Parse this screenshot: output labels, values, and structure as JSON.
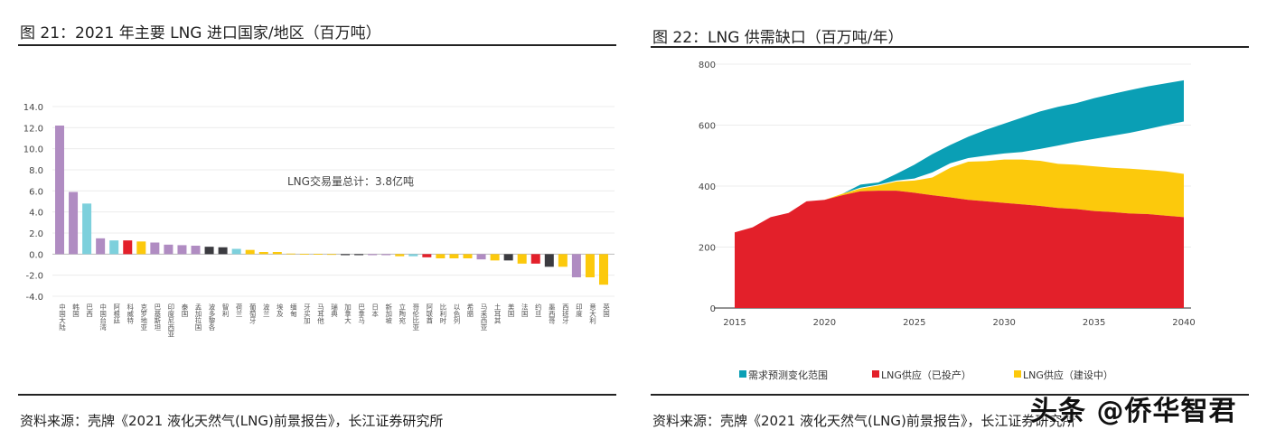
{
  "left": {
    "title": "图  21：2021 年主要 LNG 进口国家/地区（百万吨）",
    "source": "资料来源：壳牌《2021 液化天然气(LNG)前景报告》，长江证券研究所"
  },
  "right": {
    "title": "图  22：LNG 供需缺口（百万吨/年）",
    "source": "资料来源：壳牌《2021 液化天然气(LNG)前景报告》，长江证券研究所"
  },
  "watermark": "头条 @侨华智君",
  "colors": {
    "purple": "#b08cc2",
    "cyan": "#7dd0dc",
    "red": "#e3202a",
    "yellow": "#fcc90c",
    "dark": "#3b3b40",
    "teal": "#0a9fb5"
  },
  "chart_data": [
    {
      "type": "bar",
      "title": "",
      "annotation": "LNG交易量总计：3.8亿吨",
      "ylim": [
        -4,
        14
      ],
      "yticks": [
        "14.0",
        "12.0",
        "10.0",
        "8.0",
        "6.0",
        "4.0",
        "2.0",
        "0.0",
        "-2.0",
        "-4.0"
      ],
      "grid": true,
      "categories": [
        "中国大陆",
        "韩国",
        "巴西",
        "中国台湾",
        "阿根廷",
        "科威特",
        "克罗地亚",
        "巴基斯坦",
        "印度尼西亚",
        "泰国",
        "孟加拉国",
        "波多黎各",
        "智利",
        "荷兰",
        "葡萄牙",
        "波兰",
        "埃及",
        "缅甸",
        "牙买加",
        "马耳他",
        "瑞典",
        "加拿大",
        "巴拿马",
        "日本",
        "新加坡",
        "立陶宛",
        "哥伦比亚",
        "阿联酋",
        "比利时",
        "以色列",
        "希腊",
        "马来西亚",
        "土耳其",
        "美国",
        "法国",
        "约旦",
        "墨西哥",
        "西班牙",
        "印度",
        "意大利",
        "英国"
      ],
      "values": [
        12.2,
        5.9,
        4.8,
        1.5,
        1.3,
        1.3,
        1.2,
        1.1,
        0.9,
        0.85,
        0.8,
        0.7,
        0.65,
        0.5,
        0.4,
        0.2,
        0.2,
        0.05,
        0.03,
        0.02,
        0.0,
        -0.1,
        -0.1,
        -0.1,
        -0.1,
        -0.2,
        -0.2,
        -0.3,
        -0.4,
        -0.4,
        -0.4,
        -0.5,
        -0.6,
        -0.6,
        -0.9,
        -0.9,
        -1.2,
        -1.2,
        -2.2,
        -2.2,
        -2.9
      ],
      "bar_colors": [
        "purple",
        "purple",
        "cyan",
        "purple",
        "cyan",
        "red",
        "yellow",
        "purple",
        "purple",
        "purple",
        "purple",
        "dark",
        "dark",
        "cyan",
        "yellow",
        "yellow",
        "yellow",
        "yellow",
        "yellow",
        "yellow",
        "yellow",
        "dark",
        "dark",
        "purple",
        "purple",
        "yellow",
        "cyan",
        "red",
        "yellow",
        "yellow",
        "yellow",
        "purple",
        "yellow",
        "dark",
        "yellow",
        "red",
        "dark",
        "yellow",
        "purple",
        "yellow",
        "yellow"
      ]
    },
    {
      "type": "area",
      "title": "",
      "xlim": [
        2015,
        2040
      ],
      "ylim": [
        0,
        800
      ],
      "xticks": [
        "2015",
        "2020",
        "2025",
        "2030",
        "2035",
        "2040"
      ],
      "yticks": [
        "0",
        "200",
        "400",
        "600",
        "800"
      ],
      "grid": true,
      "legend_position": "bottom",
      "x": [
        2015,
        2016,
        2017,
        2018,
        2019,
        2020,
        2021,
        2022,
        2023,
        2024,
        2025,
        2026,
        2027,
        2028,
        2029,
        2030,
        2031,
        2032,
        2033,
        2034,
        2035,
        2036,
        2037,
        2038,
        2039,
        2040
      ],
      "series": [
        {
          "name": "需求预测变化范围",
          "color": "teal",
          "low": [
            null,
            null,
            null,
            null,
            null,
            null,
            375,
            395,
            405,
            418,
            425,
            445,
            475,
            492,
            500,
            507,
            512,
            522,
            533,
            545,
            555,
            565,
            575,
            587,
            600,
            612
          ],
          "high": [
            null,
            null,
            null,
            null,
            null,
            null,
            375,
            405,
            412,
            440,
            470,
            505,
            535,
            562,
            585,
            605,
            625,
            645,
            660,
            672,
            688,
            702,
            715,
            727,
            737,
            747
          ]
        },
        {
          "name": "LNG供应（已投产）",
          "color": "red",
          "values": [
            248,
            265,
            298,
            312,
            350,
            355,
            370,
            383,
            385,
            385,
            378,
            370,
            363,
            355,
            350,
            345,
            340,
            335,
            328,
            325,
            318,
            315,
            310,
            308,
            303,
            298
          ]
        },
        {
          "name": "LNG供应（建设中）",
          "color": "yellow",
          "total": [
            248,
            265,
            298,
            312,
            350,
            355,
            375,
            392,
            402,
            415,
            418,
            428,
            460,
            480,
            482,
            487,
            487,
            483,
            473,
            470,
            465,
            460,
            457,
            453,
            448,
            440
          ]
        }
      ]
    }
  ]
}
